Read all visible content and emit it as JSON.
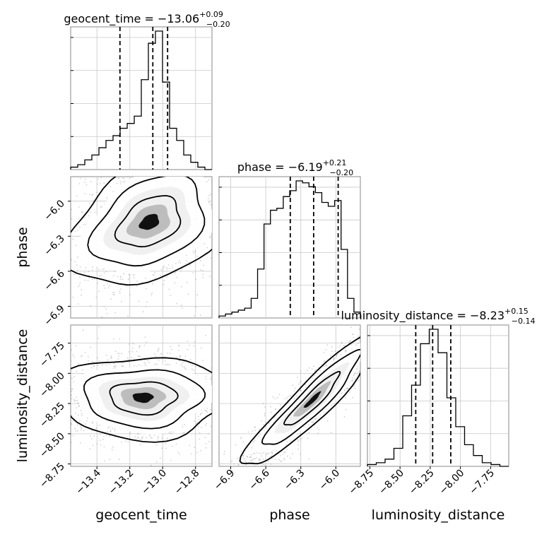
{
  "chart_data": {
    "type": "corner",
    "parameters": [
      "geocent_time",
      "phase",
      "luminosity_distance"
    ],
    "titles": [
      {
        "param": "geocent_time",
        "text": "geocent_time = −13.06",
        "sup": "+0.09",
        "sub": "−0.20"
      },
      {
        "param": "phase",
        "text": "phase = −6.19",
        "sup": "+0.21",
        "sub": "−0.20"
      },
      {
        "param": "luminosity_distance",
        "text": "luminosity_distance = −8.23",
        "sup": "+0.15",
        "sub": "−0.14"
      }
    ],
    "ranges": {
      "geocent_time": [
        -13.56,
        -12.7
      ],
      "phase": [
        -7.0,
        -5.79
      ],
      "luminosity_distance": [
        -8.77,
        -7.6
      ]
    },
    "ticks": {
      "geocent_time": {
        "values": [
          -13.4,
          -13.2,
          -13.0,
          -12.8
        ],
        "labels": [
          "−13.4",
          "−13.2",
          "−13.0",
          "−12.8"
        ]
      },
      "phase": {
        "values": [
          -6.9,
          -6.6,
          -6.3,
          -6.0
        ],
        "labels": [
          "−6.9",
          "−6.6",
          "−6.3",
          "−6.0"
        ]
      },
      "luminosity_distance": {
        "values": [
          -8.75,
          -8.5,
          -8.25,
          -8.0,
          -7.75
        ],
        "labels": [
          "−8.75",
          "−8.50",
          "−8.25",
          "−8.00",
          "−7.75"
        ]
      }
    },
    "quantiles": {
      "geocent_time": [
        -13.26,
        -13.06,
        -12.97
      ],
      "phase": [
        -6.39,
        -6.19,
        -5.98
      ],
      "luminosity_distance": [
        -8.37,
        -8.23,
        -8.08
      ]
    },
    "histograms": {
      "geocent_time": {
        "edges_range": [
          -13.56,
          -12.7
        ],
        "counts": [
          1,
          2,
          4,
          6,
          9,
          12,
          14,
          17,
          19,
          22,
          37,
          52,
          57,
          36,
          17,
          12,
          6,
          3,
          1,
          0
        ]
      },
      "phase": {
        "edges_range": [
          -7.0,
          -5.79
        ],
        "counts": [
          1,
          2,
          3,
          4,
          5,
          10,
          25,
          48,
          55,
          56,
          62,
          65,
          70,
          69,
          67,
          64,
          59,
          57,
          60,
          35,
          10,
          3
        ]
      },
      "luminosity_distance": {
        "edges_range": [
          -8.77,
          -7.6
        ],
        "counts": [
          1,
          2,
          4,
          10,
          28,
          45,
          68,
          76,
          63,
          38,
          22,
          12,
          6,
          2,
          1,
          0
        ]
      }
    },
    "pairs": [
      {
        "x": "geocent_time",
        "y": "phase",
        "mean": [
          -13.08,
          -6.18
        ],
        "cov": [
          [
            0.045,
            0.018
          ],
          [
            0.018,
            0.058
          ]
        ]
      },
      {
        "x": "geocent_time",
        "y": "luminosity_distance",
        "mean": [
          -13.12,
          -8.2
        ],
        "cov": [
          [
            0.05,
            0.0
          ],
          [
            0.0,
            0.022
          ]
        ]
      },
      {
        "x": "phase",
        "y": "luminosity_distance",
        "mean": [
          -6.2,
          -8.22
        ],
        "cov": [
          [
            0.065,
            0.058
          ],
          [
            0.058,
            0.06
          ]
        ]
      }
    ],
    "grid": true,
    "xlabel": "",
    "ylabel": ""
  }
}
